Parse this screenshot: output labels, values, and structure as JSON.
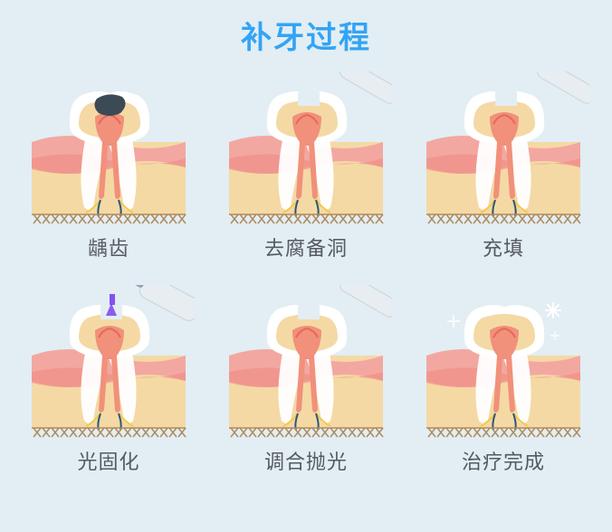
{
  "background_color": "#e2eef4",
  "title": {
    "text": "补牙过程",
    "color": "#33a4f5",
    "font_size": 34
  },
  "caption_color": "#555a5f",
  "palette": {
    "enamel": "#ffffff",
    "dentin": "#f4d9a5",
    "pulp": "#f1907b",
    "pulp_dark": "#e36b58",
    "gum": "#f3a7a1",
    "gum_shadow": "#ef8f88",
    "nerve_y": "#f2c94c",
    "nerve_b": "#2b587a",
    "ground": "#b08a5a",
    "cavity": "#3b4a54",
    "tool_body": "#e7edf1",
    "tool_shadow": "#c8d3da",
    "tool_tip": "#94a2ad",
    "uv": "#7b3ff0",
    "sparkle": "#ffffff"
  },
  "steps": [
    {
      "label": "龋齿",
      "variant": "cavity"
    },
    {
      "label": "去腐备洞",
      "variant": "drill"
    },
    {
      "label": "充填",
      "variant": "fill"
    },
    {
      "label": "光固化",
      "variant": "cure"
    },
    {
      "label": "调合抛光",
      "variant": "polish"
    },
    {
      "label": "治疗完成",
      "variant": "done"
    }
  ]
}
